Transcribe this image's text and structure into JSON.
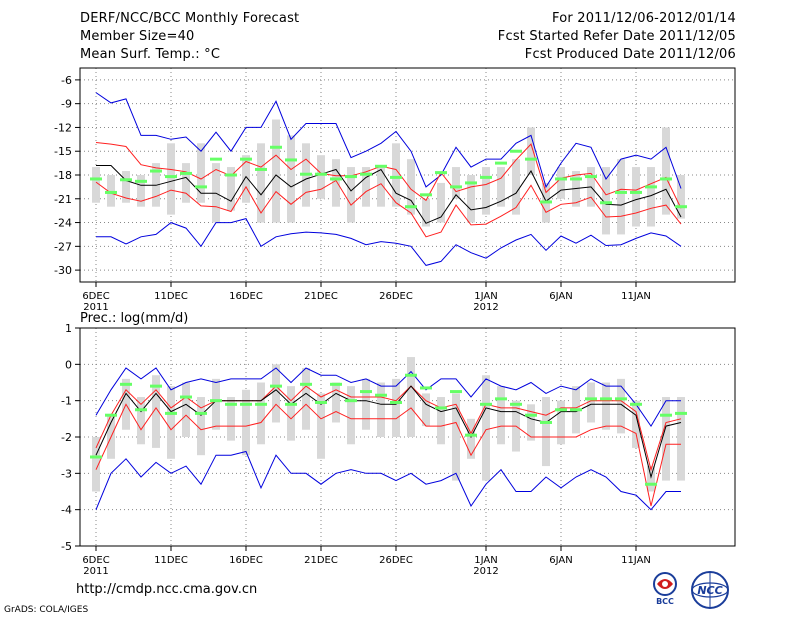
{
  "header": {
    "title": "DERF/NCC/BCC Monthly Forecast",
    "member_size": "Member Size=40",
    "variable": "Mean Surf. Temp.: °C",
    "period": "For 2011/12/06-2012/01/14",
    "fcst_started": "Fcst Started Refer Date 2011/12/05",
    "fcst_produced": "Fcst Produced Date 2011/12/06"
  },
  "footer": {
    "url": "http://cmdp.ncc.cma.gov.cn",
    "credit": "GrADS: COLA/IGES",
    "logo_bcc": "BCC",
    "logo_ncc": "NCC"
  },
  "colors": {
    "mean": "#000000",
    "band_inner": "#ff2020",
    "band_outer": "#0000dd",
    "box": "#d8d8d8",
    "marker": "#66ff66",
    "grid": "#888888"
  },
  "chart_data": [
    {
      "type": "line",
      "title": "Mean Surf. Temp.: °C",
      "ylabel": "°C",
      "ylim": [
        -32,
        -4
      ],
      "yticks": [
        "-6",
        "-9",
        "-12",
        "-15",
        "-18",
        "-21",
        "-24",
        "-27",
        "-30"
      ],
      "ytick_values": [
        -6,
        -9,
        -12,
        -15,
        -18,
        -21,
        -24,
        -27,
        -30
      ],
      "xlim": [
        0.5,
        40.5
      ],
      "xticks": [
        {
          "day": 1,
          "label": "6DEC",
          "year": "2011"
        },
        {
          "day": 6,
          "label": "11DEC"
        },
        {
          "day": 11,
          "label": "16DEC"
        },
        {
          "day": 16,
          "label": "21DEC"
        },
        {
          "day": 21,
          "label": "26DEC"
        },
        {
          "day": 27,
          "label": "1JAN",
          "year": "2012"
        },
        {
          "day": 32,
          "label": "6JAN"
        },
        {
          "day": 37,
          "label": "11JAN"
        }
      ],
      "x": [
        1,
        2,
        3,
        4,
        5,
        6,
        7,
        8,
        9,
        10,
        11,
        12,
        13,
        14,
        15,
        16,
        17,
        18,
        19,
        20,
        21,
        22,
        23,
        24,
        25,
        26,
        27,
        28,
        29,
        30,
        31,
        32,
        33,
        34,
        35,
        36,
        37,
        38,
        39,
        40
      ],
      "series": [
        {
          "name": "max",
          "role": "outer",
          "values": [
            -7.6,
            -8.9,
            -8.4,
            -13,
            -13,
            -13.5,
            -13.2,
            -15,
            -12.6,
            -15,
            -12,
            -12,
            -8.7,
            -13.5,
            -11.5,
            -11.5,
            -11.5,
            -15.8,
            -15,
            -14,
            -12.5,
            -15,
            -19.5,
            -18,
            -14.5,
            -17,
            -16,
            -16,
            -14,
            -13,
            -19.5,
            -16.5,
            -14,
            -14.5,
            -18.5,
            -16,
            -15.5,
            -16,
            -14.5,
            -19.7
          ]
        },
        {
          "name": "p75",
          "role": "inner",
          "values": [
            -13.9,
            -14.1,
            -14.4,
            -16.7,
            -17.1,
            -17.3,
            -17.6,
            -18.5,
            -17.3,
            -18.1,
            -16.3,
            -17,
            -15.5,
            -17.3,
            -16,
            -17.8,
            -18.1,
            -18.1,
            -17.6,
            -16.9,
            -17.3,
            -19.8,
            -21.2,
            -17.7,
            -20.1,
            -19.5,
            -19.2,
            -18.4,
            -16.1,
            -14.1,
            -20.2,
            -18.4,
            -18,
            -17.8,
            -20.5,
            -19.8,
            -19.9,
            -19.1,
            -18.3,
            -22.2
          ]
        },
        {
          "name": "mean",
          "role": "mean",
          "values": [
            -16.8,
            -16.8,
            -18.7,
            -19.3,
            -19.3,
            -18.8,
            -18.3,
            -20.3,
            -20.3,
            -21.3,
            -18.2,
            -20.5,
            -18,
            -19.5,
            -18.5,
            -17.9,
            -17.3,
            -20,
            -18.3,
            -17.3,
            -20.3,
            -21.2,
            -24.1,
            -23.3,
            -20.5,
            -22.4,
            -22.1,
            -21.3,
            -20.3,
            -17.5,
            -21.3,
            -19.9,
            -19.7,
            -19.5,
            -21.7,
            -21.8,
            -21.1,
            -20.6,
            -19.8,
            -23.3
          ]
        },
        {
          "name": "p25",
          "role": "inner",
          "values": [
            -18.9,
            -20.3,
            -20.9,
            -21.3,
            -20.7,
            -19.9,
            -20.3,
            -21.9,
            -22,
            -22.6,
            -19.5,
            -22.8,
            -20.1,
            -21.7,
            -20.2,
            -19.8,
            -18.7,
            -21.8,
            -20.1,
            -19.1,
            -21.5,
            -22.8,
            -25.8,
            -25.2,
            -21.8,
            -24.3,
            -24.2,
            -23.2,
            -22.1,
            -19.3,
            -22.7,
            -21.7,
            -21.5,
            -20.8,
            -23.3,
            -23.2,
            -22.8,
            -22.2,
            -21.8,
            -24.2
          ]
        },
        {
          "name": "min",
          "role": "outer",
          "values": [
            -25.8,
            -25.8,
            -26.7,
            -25.8,
            -25.5,
            -24,
            -24.7,
            -27,
            -24,
            -24,
            -23.5,
            -27,
            -25.8,
            -25.4,
            -25.2,
            -25.3,
            -25.5,
            -26,
            -26.8,
            -26.4,
            -26.6,
            -27,
            -29.4,
            -28.9,
            -26.8,
            -27.8,
            -28.5,
            -27.2,
            -26.2,
            -25.5,
            -27.5,
            -25.7,
            -26.6,
            -25.6,
            -26.9,
            -26.8,
            -26,
            -25.3,
            -25.7,
            -27
          ]
        }
      ],
      "boxes": [
        [
          -17,
          -21.5
        ],
        [
          -18,
          -22
        ],
        [
          -17.5,
          -21.5
        ],
        [
          -18,
          -22
        ],
        [
          -16.5,
          -22
        ],
        [
          -14,
          -23
        ],
        [
          -16.5,
          -21.5
        ],
        [
          -14,
          -21.5
        ],
        [
          -16.5,
          -24
        ],
        [
          -17,
          -22.5
        ],
        [
          -15.5,
          -21.5
        ],
        [
          -14,
          -24
        ],
        [
          -11,
          -24
        ],
        [
          -13,
          -24
        ],
        [
          -14,
          -22
        ],
        [
          -15.5,
          -21
        ],
        [
          -16,
          -22
        ],
        [
          -17,
          -24
        ],
        [
          -17,
          -22
        ],
        [
          -17,
          -22
        ],
        [
          -14,
          -22
        ],
        [
          -16,
          -23
        ],
        [
          -21,
          -24.5
        ],
        [
          -19,
          -24
        ],
        [
          -17,
          -21
        ],
        [
          -18,
          -24
        ],
        [
          -17,
          -23
        ],
        [
          -17,
          -22
        ],
        [
          -16,
          -23
        ],
        [
          -12,
          -18
        ],
        [
          -19,
          -24
        ],
        [
          -17,
          -21
        ],
        [
          -17.5,
          -22
        ],
        [
          -17,
          -22
        ],
        [
          -17,
          -25.5
        ],
        [
          -16,
          -25.5
        ],
        [
          -17,
          -24.5
        ],
        [
          -17,
          -24.5
        ],
        [
          -12,
          -23
        ],
        [
          -18,
          -23.5
        ]
      ],
      "markers": [
        -18.5,
        -20.2,
        -18.6,
        -18.8,
        -17.5,
        -18.2,
        -17.8,
        -19.5,
        -16,
        -18,
        -16,
        -17.3,
        -14.5,
        -16.1,
        -17.9,
        -17.9,
        -18.5,
        -18.2,
        -17.9,
        -16.9,
        -18.3,
        -22,
        -20.5,
        -17.7,
        -19.5,
        -19,
        -18.3,
        -16.5,
        -15,
        -16,
        -21.4,
        -18.5,
        -18.5,
        -18.2,
        -21.5,
        -20.2,
        -20.2,
        -19.5,
        -18.5,
        -22
      ]
    },
    {
      "type": "line",
      "title": "Prec.: log(mm/d)",
      "ylabel": "log(mm/d)",
      "ylim": [
        -5,
        1
      ],
      "yticks": [
        "1",
        "0",
        "-1",
        "-2",
        "-3",
        "-4",
        "-5"
      ],
      "ytick_values": [
        1,
        0,
        -1,
        -2,
        -3,
        -4,
        -5
      ],
      "xlim": [
        0.5,
        40.5
      ],
      "xticks": [
        {
          "day": 1,
          "label": "6DEC",
          "year": "2011"
        },
        {
          "day": 6,
          "label": "11DEC"
        },
        {
          "day": 11,
          "label": "16DEC"
        },
        {
          "day": 16,
          "label": "21DEC"
        },
        {
          "day": 21,
          "label": "26DEC"
        },
        {
          "day": 27,
          "label": "1JAN",
          "year": "2012"
        },
        {
          "day": 32,
          "label": "6JAN"
        },
        {
          "day": 37,
          "label": "11JAN"
        }
      ],
      "x": [
        1,
        2,
        3,
        4,
        5,
        6,
        7,
        8,
        9,
        10,
        11,
        12,
        13,
        14,
        15,
        16,
        17,
        18,
        19,
        20,
        21,
        22,
        23,
        24,
        25,
        26,
        27,
        28,
        29,
        30,
        31,
        32,
        33,
        34,
        35,
        36,
        37,
        38,
        39,
        40
      ],
      "series": [
        {
          "name": "max",
          "role": "outer",
          "values": [
            -1.4,
            -0.7,
            -0.1,
            -0.4,
            -0.1,
            -0.7,
            -0.5,
            -0.4,
            -0.5,
            -0.4,
            -0.4,
            -0.4,
            -0.1,
            -0.5,
            -0.1,
            -0.3,
            -0.3,
            -0.5,
            -0.4,
            -0.6,
            -0.6,
            -0.2,
            -0.7,
            -0.4,
            -0.4,
            -0.9,
            -0.4,
            -0.6,
            -0.7,
            -0.5,
            -0.8,
            -0.6,
            -0.7,
            -0.4,
            -0.6,
            -0.6,
            -1.1,
            -1.7,
            -1,
            -1
          ]
        },
        {
          "name": "p75",
          "role": "inner",
          "values": [
            -2.3,
            -1.4,
            -0.7,
            -1.1,
            -0.7,
            -1.2,
            -0.9,
            -1.2,
            -1,
            -1,
            -1,
            -1,
            -0.6,
            -1,
            -0.6,
            -0.9,
            -0.7,
            -0.9,
            -0.9,
            -0.9,
            -1,
            -0.6,
            -1,
            -1.2,
            -1.1,
            -1.9,
            -1.1,
            -1.2,
            -1.2,
            -1.3,
            -1.4,
            -1.2,
            -1.2,
            -1,
            -1,
            -1,
            -1.3,
            -2.9,
            -1.6,
            -1.5
          ]
        },
        {
          "name": "mean",
          "role": "mean",
          "values": [
            -2.5,
            -1.6,
            -0.8,
            -1.3,
            -0.8,
            -1.3,
            -1.1,
            -1.4,
            -1,
            -1,
            -1,
            -1,
            -0.7,
            -1.1,
            -0.8,
            -1.1,
            -0.8,
            -1,
            -1,
            -1.1,
            -1.1,
            -0.6,
            -1.1,
            -1.3,
            -1.2,
            -2,
            -1.2,
            -1.3,
            -1.3,
            -1.5,
            -1.6,
            -1.3,
            -1.3,
            -1.1,
            -1.1,
            -1.1,
            -1.4,
            -3.1,
            -1.7,
            -1.6
          ]
        },
        {
          "name": "p25",
          "role": "inner",
          "values": [
            -2.9,
            -2,
            -1.1,
            -1.8,
            -1.2,
            -1.8,
            -1.4,
            -1.8,
            -1.7,
            -1.7,
            -1.7,
            -1.6,
            -1.1,
            -1.5,
            -1.1,
            -1.5,
            -1.3,
            -1.5,
            -1.5,
            -1.5,
            -1.5,
            -1.2,
            -1.7,
            -1.7,
            -1.6,
            -2.5,
            -1.8,
            -1.7,
            -1.7,
            -2,
            -2,
            -2,
            -2,
            -1.8,
            -1.7,
            -1.7,
            -1.9,
            -3.9,
            -2.2,
            -2.2
          ]
        },
        {
          "name": "min",
          "role": "outer",
          "values": [
            -4,
            -3,
            -2.6,
            -3.1,
            -2.7,
            -3,
            -2.8,
            -3.3,
            -2.5,
            -2.5,
            -2.4,
            -3.4,
            -2.5,
            -3,
            -3,
            -3.3,
            -3,
            -2.9,
            -3,
            -3,
            -3.2,
            -3,
            -3.3,
            -3.2,
            -3,
            -3.9,
            -3.3,
            -2.9,
            -3.5,
            -3.5,
            -3.1,
            -3.4,
            -3.1,
            -2.9,
            -3.1,
            -3.5,
            -3.6,
            -4,
            -3.5,
            -3.5
          ]
        },
        {
          "name": "min-gap",
          "role": "gap",
          "values": [
            null,
            null,
            null,
            null,
            null,
            null,
            null,
            null,
            null,
            null,
            null,
            null,
            null,
            null,
            null,
            null,
            null,
            null,
            null,
            null,
            null,
            null,
            null,
            null,
            null,
            null,
            null,
            null,
            null,
            null,
            null,
            null,
            null,
            null,
            null,
            null,
            null,
            null,
            null,
            null
          ]
        }
      ],
      "boxes": [
        [
          -2,
          -3.5
        ],
        [
          -1.4,
          -2.6
        ],
        [
          -0.4,
          -1.8
        ],
        [
          -0.9,
          -2.2
        ],
        [
          -0.3,
          -2.3
        ],
        [
          -0.6,
          -2.6
        ],
        [
          -0.5,
          -2
        ],
        [
          -0.9,
          -2.5
        ],
        [
          -0.4,
          -1.8
        ],
        [
          -0.9,
          -2.1
        ],
        [
          -0.7,
          -2.5
        ],
        [
          -0.5,
          -2.2
        ],
        [
          0,
          -1.6
        ],
        [
          -0.6,
          -2.1
        ],
        [
          -0.1,
          -1.8
        ],
        [
          -0.8,
          -2.6
        ],
        [
          -0.5,
          -1.6
        ],
        [
          -0.6,
          -2.2
        ],
        [
          -0.4,
          -1.8
        ],
        [
          -0.5,
          -2
        ],
        [
          -0.4,
          -2
        ],
        [
          0.2,
          -2
        ],
        [
          -0.8,
          -1.7
        ],
        [
          -0.9,
          -2.2
        ],
        [
          -0.8,
          -3.2
        ],
        [
          -1.5,
          -2.6
        ],
        [
          -0.3,
          -3.2
        ],
        [
          -0.6,
          -2.2
        ],
        [
          -1,
          -2.4
        ],
        [
          -1.1,
          -2.1
        ],
        [
          -0.9,
          -2.8
        ],
        [
          -1,
          -2.2
        ],
        [
          -0.6,
          -1.9
        ],
        [
          -0.5,
          -1.6
        ],
        [
          -0.5,
          -1.8
        ],
        [
          -0.4,
          -1.9
        ],
        [
          -1,
          -2.3
        ],
        [
          -2.8,
          -3.5
        ],
        [
          -0.9,
          -3.2
        ],
        [
          -0.9,
          -3.2
        ]
      ],
      "markers": [
        -2.55,
        -1.4,
        -0.55,
        -1.25,
        -0.6,
        -1.35,
        -0.9,
        -1.35,
        -1,
        -1.1,
        -1.1,
        -1.1,
        -0.6,
        -1.1,
        -0.55,
        -1.05,
        -0.55,
        -1,
        -0.75,
        -0.85,
        -1.05,
        -0.3,
        -0.65,
        -1.2,
        -0.75,
        -1.95,
        -1.1,
        -0.95,
        -1.1,
        -1.4,
        -1.6,
        -1.25,
        -1.25,
        -0.95,
        -0.95,
        -0.95,
        -1.1,
        -3.3,
        -1.4,
        -1.35
      ]
    }
  ]
}
